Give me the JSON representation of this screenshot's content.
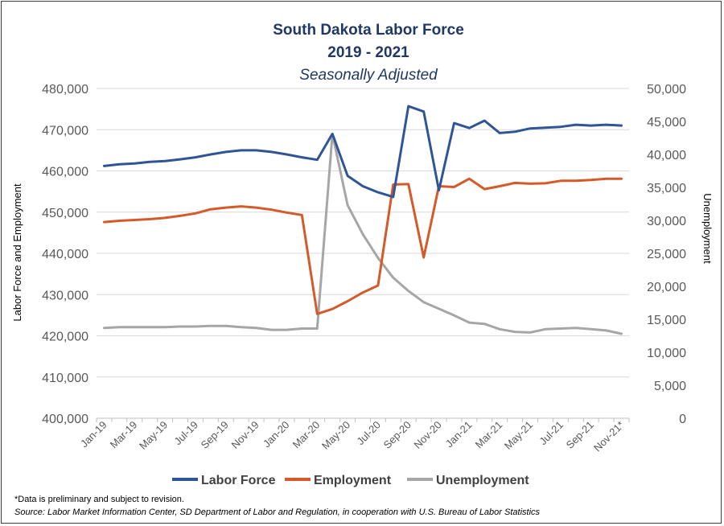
{
  "chart_data": {
    "type": "line",
    "title": "South Dakota Labor Force",
    "title_line2": "2019 - 2021",
    "subtitle": "Seasonally Adjusted",
    "ylabel_left": "Labor Force and Employment",
    "ylabel_right": "Unemployment",
    "ylim_left": [
      400000,
      480000
    ],
    "ylim_right": [
      0,
      50000
    ],
    "y_ticks_left": [
      "400,000",
      "410,000",
      "420,000",
      "430,000",
      "440,000",
      "450,000",
      "460,000",
      "470,000",
      "480,000"
    ],
    "y_ticks_left_values": [
      400000,
      410000,
      420000,
      430000,
      440000,
      450000,
      460000,
      470000,
      480000
    ],
    "y_ticks_right": [
      "0",
      "5,000",
      "10,000",
      "15,000",
      "20,000",
      "25,000",
      "30,000",
      "35,000",
      "40,000",
      "45,000",
      "50,000"
    ],
    "y_ticks_right_values": [
      0,
      5000,
      10000,
      15000,
      20000,
      25000,
      30000,
      35000,
      40000,
      45000,
      50000
    ],
    "categories": [
      "Jan-19",
      "Feb-19",
      "Mar-19",
      "Apr-19",
      "May-19",
      "Jun-19",
      "Jul-19",
      "Aug-19",
      "Sep-19",
      "Oct-19",
      "Nov-19",
      "Dec-19",
      "Jan-20",
      "Feb-20",
      "Mar-20",
      "Apr-20",
      "May-20",
      "Jun-20",
      "Jul-20",
      "Aug-20",
      "Sep-20",
      "Oct-20",
      "Nov-20",
      "Dec-20",
      "Jan-21",
      "Feb-21",
      "Mar-21",
      "Apr-21",
      "May-21",
      "Jun-21",
      "Jul-21",
      "Aug-21",
      "Sep-21",
      "Oct-21",
      "Nov-21*"
    ],
    "x_tick_labels": [
      "Jan-19",
      "Mar-19",
      "May-19",
      "Jul-19",
      "Sep-19",
      "Nov-19",
      "Jan-20",
      "Mar-20",
      "May-20",
      "Jul-20",
      "Sep-20",
      "Nov-20",
      "Jan-21",
      "Mar-21",
      "May-21",
      "Jul-21",
      "Sep-21",
      "Nov-21*"
    ],
    "series": [
      {
        "name": "Labor Force",
        "axis": "left",
        "color": "#2f5597",
        "values": [
          461200,
          461600,
          461800,
          462200,
          462400,
          462800,
          463300,
          464000,
          464600,
          465000,
          465000,
          464600,
          464000,
          463300,
          462700,
          469000,
          458800,
          456300,
          454800,
          453700,
          475700,
          474400,
          455300,
          471600,
          470400,
          472200,
          469200,
          469500,
          470300,
          470500,
          470700,
          471200,
          471000,
          471200,
          471000
        ]
      },
      {
        "name": "Employment",
        "axis": "left",
        "color": "#d45a2a",
        "values": [
          447600,
          447900,
          448100,
          448300,
          448600,
          449100,
          449700,
          450700,
          451100,
          451400,
          451100,
          450600,
          449900,
          449300,
          425300,
          426500,
          428400,
          430500,
          432200,
          456700,
          456800,
          439000,
          456300,
          456100,
          458100,
          455600,
          456300,
          457100,
          456900,
          457000,
          457600,
          457600,
          457800,
          458100,
          458100
        ]
      },
      {
        "name": "Unemployment",
        "axis": "right",
        "color": "#a6a6a6",
        "values": [
          13700,
          13800,
          13800,
          13800,
          13800,
          13900,
          13900,
          14000,
          14000,
          13800,
          13700,
          13400,
          13400,
          13600,
          13600,
          43100,
          32300,
          27900,
          24300,
          21300,
          19300,
          17600,
          16600,
          15600,
          14500,
          14300,
          13500,
          13100,
          13000,
          13500,
          13600,
          13700,
          13500,
          13300,
          12800
        ]
      }
    ]
  },
  "footnote": "*Data is preliminary and subject to revision.",
  "source": "Source:  Labor Market Information Center, SD Department of Labor and Regulation, in cooperation with U.S. Bureau of Labor Statistics"
}
